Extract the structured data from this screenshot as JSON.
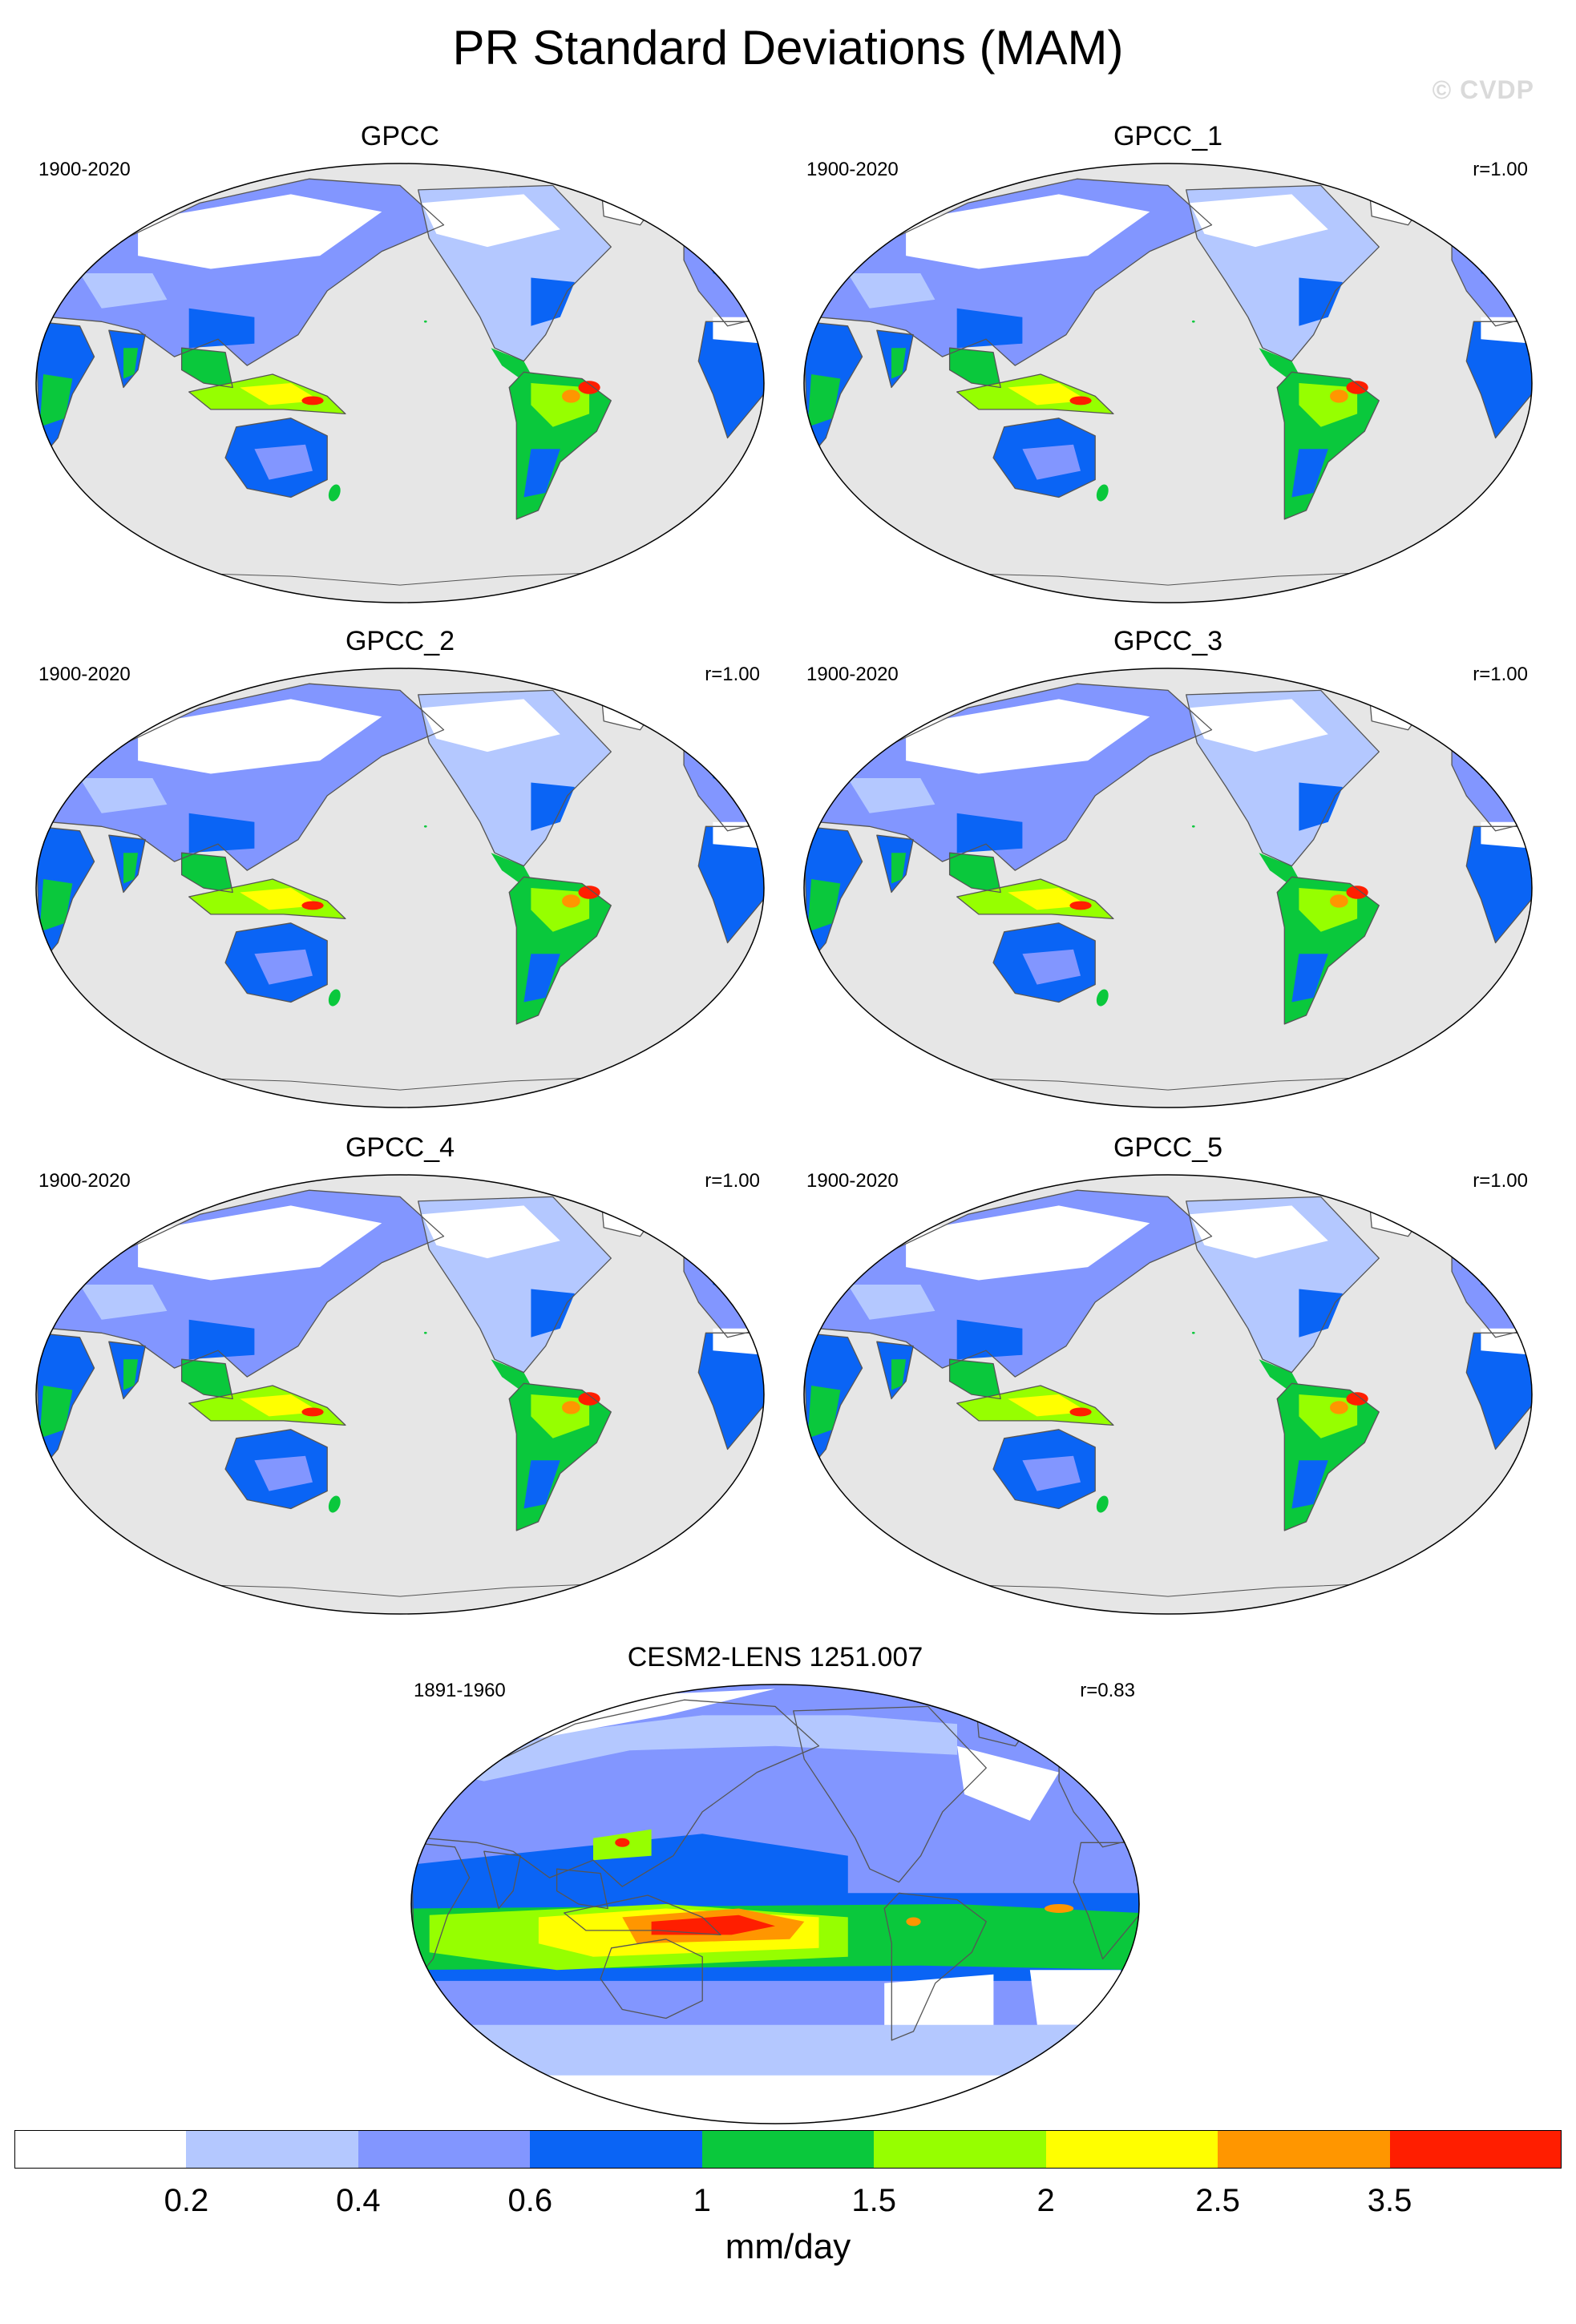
{
  "title": "PR Standard Deviations (MAM)",
  "watermark": "© CVDP",
  "panels": [
    {
      "name": "GPCC",
      "years": "1900-2020",
      "corr": "",
      "kind": "obs"
    },
    {
      "name": "GPCC_1",
      "years": "1900-2020",
      "corr": "r=1.00",
      "kind": "obs"
    },
    {
      "name": "GPCC_2",
      "years": "1900-2020",
      "corr": "r=1.00",
      "kind": "obs"
    },
    {
      "name": "GPCC_3",
      "years": "1900-2020",
      "corr": "r=1.00",
      "kind": "obs"
    },
    {
      "name": "GPCC_4",
      "years": "1900-2020",
      "corr": "r=1.00",
      "kind": "obs"
    },
    {
      "name": "GPCC_5",
      "years": "1900-2020",
      "corr": "r=1.00",
      "kind": "obs"
    },
    {
      "name": "CESM2-LENS 1251.007",
      "years": "1891-1960",
      "corr": "r=0.83",
      "kind": "model"
    }
  ],
  "colorbar": {
    "units": "mm/day",
    "ticks": [
      "0.2",
      "0.4",
      "0.6",
      "1",
      "1.5",
      "2",
      "2.5",
      "3.5"
    ],
    "colors": [
      "#ffffff",
      "#b4c8ff",
      "#8296ff",
      "#0a64f5",
      "#0ac83c",
      "#96ff00",
      "#ffff00",
      "#ff9600",
      "#ff1e00"
    ]
  },
  "map_colors": {
    "missing": "#e6e6e6",
    "coast": "#555555"
  }
}
